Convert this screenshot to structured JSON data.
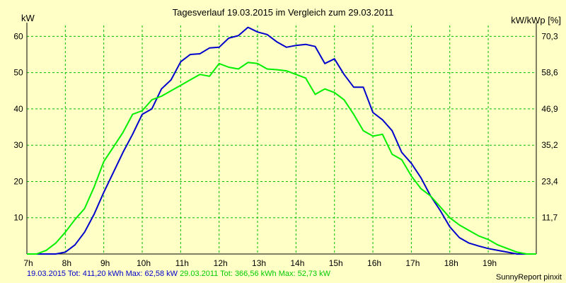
{
  "chart_data": {
    "type": "line",
    "title": "Tagesverlauf 19.03.2015 im Vergleich zum 29.03.2011",
    "ylabel_left": "kW",
    "ylabel_right": "kW/kWp [%]",
    "x_ticks": [
      "7h",
      "8h",
      "9h",
      "10h",
      "11h",
      "12h",
      "13h",
      "14h",
      "15h",
      "16h",
      "17h",
      "18h",
      "19h"
    ],
    "y_ticks_left": [
      "10",
      "20",
      "30",
      "40",
      "50",
      "60"
    ],
    "y_ticks_right": [
      "11,7",
      "23,4",
      "35,2",
      "46,9",
      "58,6",
      "70,3"
    ],
    "xlim": [
      7,
      20.25
    ],
    "ylim": [
      0,
      63
    ],
    "grid": true,
    "series": [
      {
        "name": "19.03.2015",
        "color": "#0000cc",
        "x": [
          7.0,
          7.25,
          7.5,
          7.75,
          8.0,
          8.25,
          8.5,
          8.75,
          9.0,
          9.25,
          9.5,
          9.75,
          10.0,
          10.25,
          10.5,
          10.75,
          11.0,
          11.25,
          11.5,
          11.75,
          12.0,
          12.25,
          12.5,
          12.75,
          13.0,
          13.25,
          13.5,
          13.75,
          14.0,
          14.25,
          14.5,
          14.75,
          15.0,
          15.25,
          15.5,
          15.75,
          16.0,
          16.25,
          16.5,
          16.75,
          17.0,
          17.25,
          17.5,
          17.75,
          18.0,
          18.25,
          18.5,
          18.75,
          19.0,
          19.25,
          19.5,
          19.75,
          20.0,
          20.25
        ],
        "values": [
          0,
          0,
          0,
          0,
          0.5,
          2.5,
          6,
          11,
          17,
          22.5,
          28,
          33,
          38.5,
          40,
          45.5,
          48,
          53,
          55,
          55.2,
          56.8,
          57,
          59.5,
          60.2,
          62.5,
          61.2,
          60.5,
          58.5,
          57,
          57.5,
          57.8,
          57.2,
          52.5,
          53.8,
          49.5,
          46,
          46,
          39,
          37,
          34,
          28,
          25,
          21,
          16,
          12,
          7.5,
          4.5,
          3,
          2.2,
          1.5,
          1,
          0.5,
          0,
          0,
          0
        ]
      },
      {
        "name": "29.03.2011",
        "color": "#00ee00",
        "x": [
          7.0,
          7.25,
          7.5,
          7.75,
          8.0,
          8.25,
          8.5,
          8.75,
          9.0,
          9.25,
          9.5,
          9.75,
          10.0,
          10.25,
          10.5,
          10.75,
          11.0,
          11.25,
          11.5,
          11.75,
          12.0,
          12.25,
          12.5,
          12.75,
          13.0,
          13.25,
          13.5,
          13.75,
          14.0,
          14.25,
          14.5,
          14.75,
          15.0,
          15.25,
          15.5,
          15.75,
          16.0,
          16.25,
          16.5,
          16.75,
          17.0,
          17.25,
          17.5,
          17.75,
          18.0,
          18.25,
          18.5,
          18.75,
          19.0,
          19.25,
          19.5,
          19.75,
          20.0,
          20.25
        ],
        "values": [
          0,
          0,
          1,
          3,
          6,
          9.5,
          12.5,
          18.5,
          25.5,
          29.5,
          33.5,
          38.5,
          39.5,
          42.5,
          43.5,
          45,
          46.5,
          48,
          49.5,
          49,
          52.5,
          51.5,
          51,
          52.8,
          52.5,
          51,
          50.8,
          50.5,
          49.5,
          48.5,
          44,
          45.5,
          44.5,
          42.5,
          38.5,
          34,
          32.5,
          33,
          27.5,
          26,
          21.5,
          18,
          16,
          13,
          10,
          8,
          6.5,
          5,
          4,
          2.5,
          1.5,
          0.5,
          0,
          0
        ]
      }
    ],
    "footer": {
      "s1_text": "19.03.2015 Tot: 411,20 kWh Max: 62,58 kW",
      "s2_text": "29.03.2011 Tot: 366,56 kWh Max: 52,73 kW",
      "credit": "SunnyReport pinxit"
    }
  }
}
